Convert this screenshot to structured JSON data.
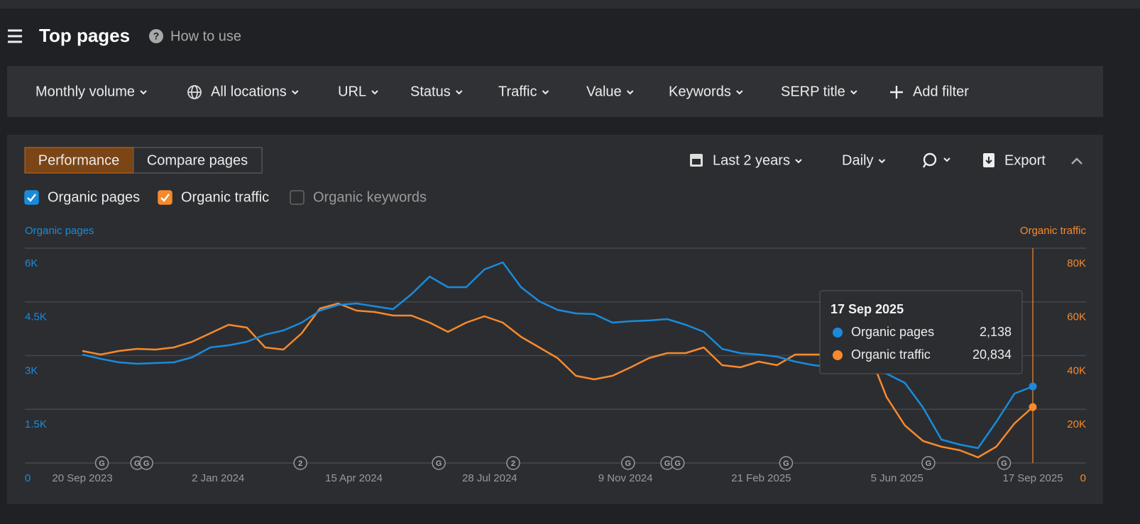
{
  "header": {
    "title": "Top pages",
    "help": "How to use"
  },
  "filters": [
    "Monthly volume",
    "All locations",
    "URL",
    "Status",
    "Traffic",
    "Value",
    "Keywords",
    "SERP title"
  ],
  "add_filter": "Add filter",
  "tabs": [
    "Performance",
    "Compare pages"
  ],
  "active_tab": 0,
  "controls": {
    "range": "Last 2 years",
    "interval": "Daily",
    "export": "Export"
  },
  "metrics": [
    {
      "name": "Organic pages",
      "checked": true,
      "color": "#1a8bdb"
    },
    {
      "name": "Organic traffic",
      "checked": true,
      "color": "#f68a2c"
    },
    {
      "name": "Organic keywords",
      "checked": false,
      "color": "#8a8a8a"
    }
  ],
  "chart_data": {
    "type": "line",
    "x": [
      "2023-09-20",
      "2023-10-04",
      "2023-10-18",
      "2023-11-01",
      "2023-11-15",
      "2023-11-29",
      "2023-12-13",
      "2023-12-27",
      "2024-01-10",
      "2024-01-24",
      "2024-02-07",
      "2024-02-21",
      "2024-03-06",
      "2024-03-20",
      "2024-04-03",
      "2024-04-17",
      "2024-05-01",
      "2024-05-15",
      "2024-05-29",
      "2024-06-12",
      "2024-06-26",
      "2024-07-10",
      "2024-07-24",
      "2024-08-07",
      "2024-08-21",
      "2024-09-04",
      "2024-09-18",
      "2024-10-02",
      "2024-10-16",
      "2024-10-30",
      "2024-11-13",
      "2024-11-27",
      "2024-12-11",
      "2024-12-25",
      "2025-01-08",
      "2025-01-22",
      "2025-02-05",
      "2025-02-19",
      "2025-03-05",
      "2025-03-19",
      "2025-04-02",
      "2025-04-16",
      "2025-04-30",
      "2025-05-14",
      "2025-05-28",
      "2025-06-11",
      "2025-06-25",
      "2025-07-09",
      "2025-07-23",
      "2025-08-06",
      "2025-08-20",
      "2025-09-03",
      "2025-09-17"
    ],
    "series": [
      {
        "name": "Organic pages",
        "color": "#1a8bdb",
        "axis": "y",
        "values": [
          3029,
          2911,
          2812,
          2772,
          2792,
          2812,
          2950,
          3227,
          3287,
          3386,
          3584,
          3703,
          3920,
          4257,
          4415,
          4455,
          4376,
          4297,
          4712,
          5207,
          4910,
          4910,
          5405,
          5603,
          4910,
          4514,
          4277,
          4178,
          4158,
          3920,
          3960,
          3980,
          4019,
          3861,
          3663,
          3188,
          3069,
          3029,
          2970,
          2831,
          2732,
          2673,
          2673,
          2633,
          2495,
          2237,
          1544,
          653,
          515,
          416,
          1148,
          1940,
          2138
        ]
      },
      {
        "name": "Organic traffic",
        "color": "#f68a2c",
        "axis": "y2",
        "values": [
          41710,
          40390,
          41710,
          42500,
          42240,
          43030,
          45140,
          48310,
          51480,
          50420,
          43030,
          42240,
          48310,
          57550,
          59400,
          56760,
          56230,
          54910,
          54910,
          52270,
          48840,
          52270,
          54650,
          52270,
          46990,
          43030,
          39070,
          32470,
          31150,
          32470,
          35640,
          39070,
          40920,
          40920,
          43030,
          36430,
          35640,
          37750,
          36430,
          40390,
          40390,
          40390,
          41710,
          41710,
          24550,
          13990,
          8180,
          6070,
          4750,
          2110,
          6070,
          14780,
          20834
        ]
      }
    ],
    "xlim": [
      "2023-09-20",
      "2025-09-17"
    ],
    "xticks": [
      {
        "value": "2023-09-20",
        "label": "20 Sep 2023"
      },
      {
        "value": "2024-01-02",
        "label": "2 Jan 2024"
      },
      {
        "value": "2024-04-15",
        "label": "15 Apr 2024"
      },
      {
        "value": "2024-07-28",
        "label": "28 Jul 2024"
      },
      {
        "value": "2024-11-09",
        "label": "9 Nov 2024"
      },
      {
        "value": "2025-02-21",
        "label": "21 Feb 2025"
      },
      {
        "value": "2025-06-05",
        "label": "5 Jun 2025"
      },
      {
        "value": "2025-09-17",
        "label": "17 Sep 2025"
      }
    ],
    "ylabel": "Organic pages",
    "y2label": "Organic traffic",
    "ylim": [
      0,
      6000
    ],
    "yticks": [
      0,
      {
        "value": 1500,
        "label": "1.5K"
      },
      {
        "value": 3000,
        "label": "3K"
      },
      {
        "value": 4500,
        "label": "4.5K"
      },
      {
        "value": 6000,
        "label": "6K"
      }
    ],
    "y2lim": [
      0,
      80000
    ],
    "y2ticks": [
      0,
      {
        "value": 20000,
        "label": "20K"
      },
      {
        "value": 40000,
        "label": "40K"
      },
      {
        "value": 60000,
        "label": "60K"
      },
      {
        "value": 80000,
        "label": "80K"
      }
    ],
    "grid": true,
    "annotations": [
      {
        "x": "2023-10-05",
        "label": "G"
      },
      {
        "x": "2023-11-01",
        "label": "G"
      },
      {
        "x": "2023-11-08",
        "label": "G"
      },
      {
        "x": "2024-03-05",
        "label": "2"
      },
      {
        "x": "2024-06-19",
        "label": "G"
      },
      {
        "x": "2024-08-15",
        "label": "2"
      },
      {
        "x": "2024-11-11",
        "label": "G"
      },
      {
        "x": "2024-12-11",
        "label": "G"
      },
      {
        "x": "2024-12-19",
        "label": "G"
      },
      {
        "x": "2025-03-12",
        "label": "G"
      },
      {
        "x": "2025-06-29",
        "label": "G"
      },
      {
        "x": "2025-08-26",
        "label": "G"
      }
    ],
    "tooltip": {
      "x": "2025-09-17",
      "title": "17 Sep 2025",
      "rows": [
        {
          "name": "Organic pages",
          "value": "2,138"
        },
        {
          "name": "Organic traffic",
          "value": "20,834"
        }
      ]
    }
  }
}
